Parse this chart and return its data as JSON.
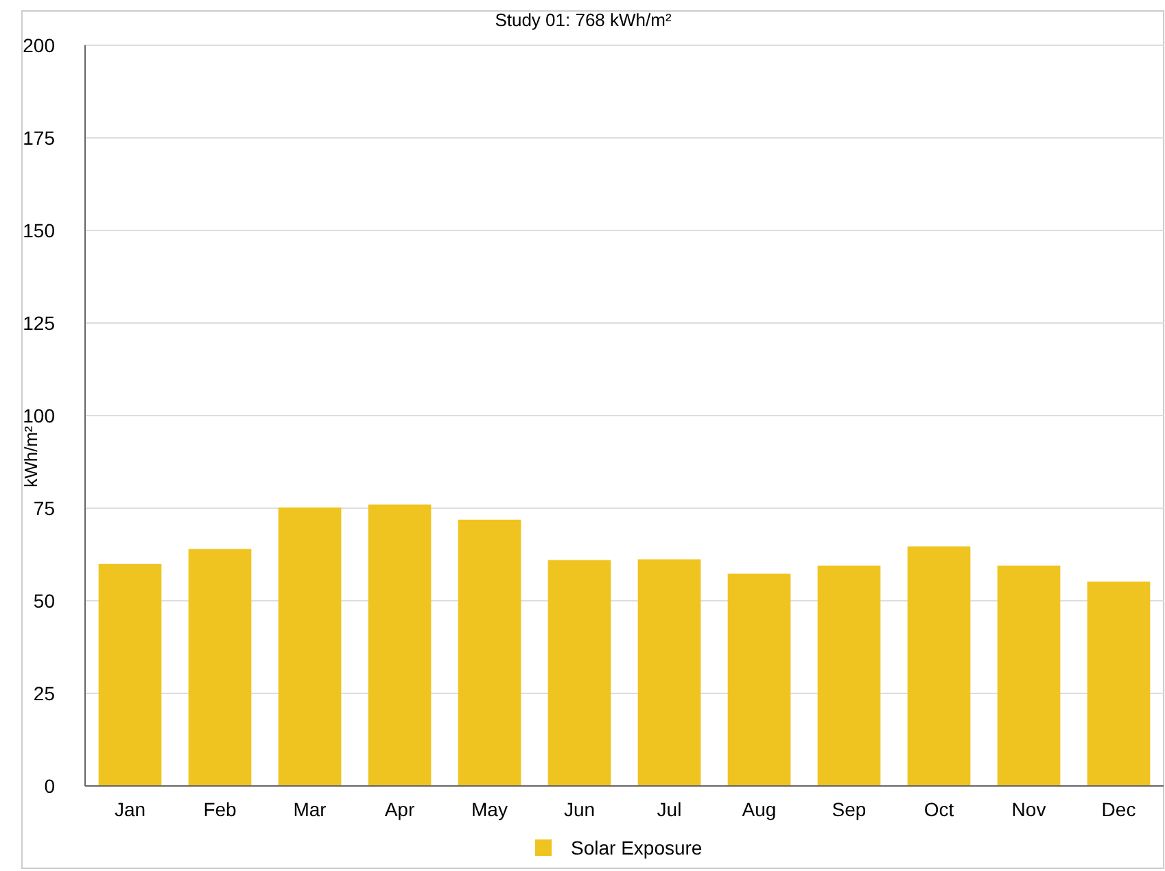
{
  "chart_data": {
    "type": "bar",
    "title": "Study 01: 768 kWh/m²",
    "ylabel": "kWh/m²",
    "categories": [
      "Jan",
      "Feb",
      "Mar",
      "Apr",
      "May",
      "Jun",
      "Jul",
      "Aug",
      "Sep",
      "Oct",
      "Nov",
      "Dec"
    ],
    "series": [
      {
        "name": "Solar Exposure",
        "color": "#f0c420",
        "values": [
          60,
          64,
          75.2,
          76,
          71.9,
          61,
          61.2,
          57.3,
          59.5,
          64.7,
          59.5,
          55.2
        ]
      }
    ],
    "ylim": [
      0,
      200
    ],
    "yticks": [
      0,
      25,
      50,
      75,
      100,
      125,
      150,
      175,
      200
    ],
    "grid": "y",
    "legend": "bottom"
  }
}
